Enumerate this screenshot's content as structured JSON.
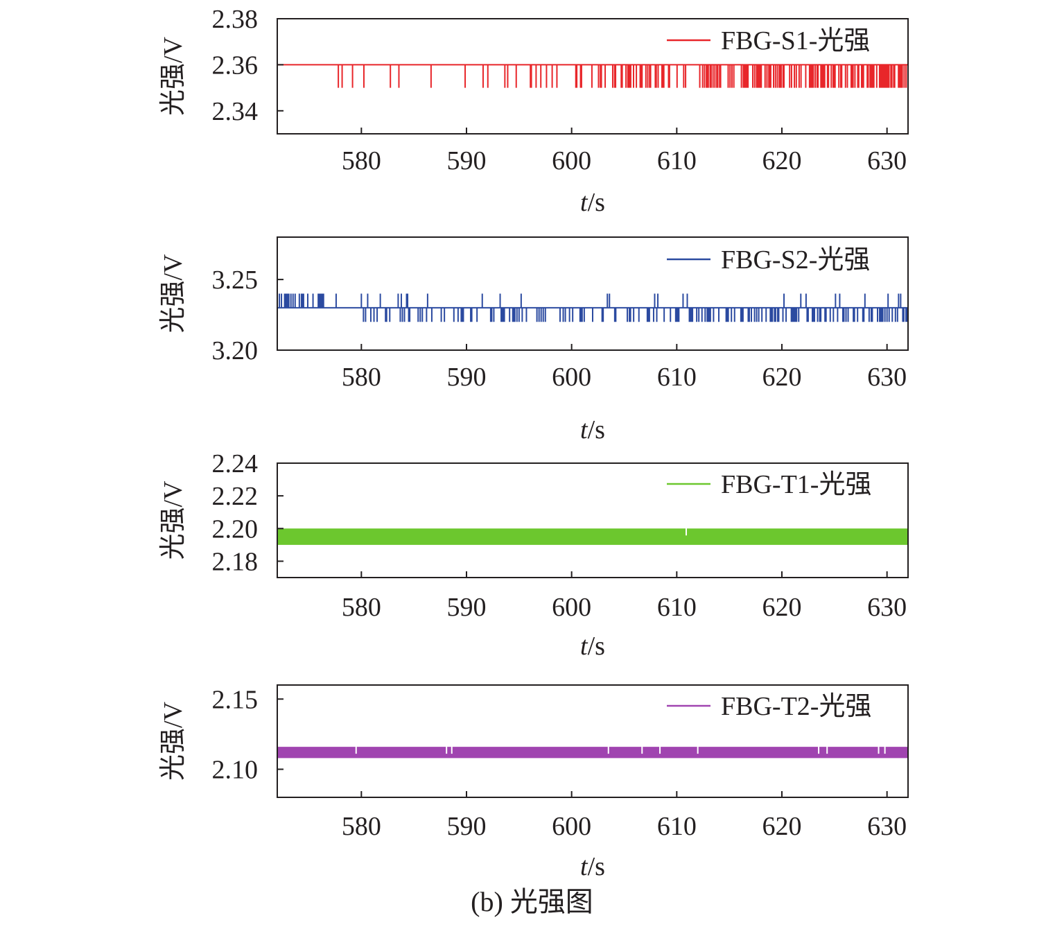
{
  "caption": "(b) 光强图",
  "chart_data": [
    {
      "type": "line",
      "xlabel": "t/s",
      "ylabel": "光强/V",
      "xlim": [
        572,
        632
      ],
      "ylim": [
        2.33,
        2.38
      ],
      "xticks": [
        580,
        590,
        600,
        610,
        620,
        630
      ],
      "yticks": [
        2.34,
        2.36,
        2.38
      ],
      "ytick_labels": [
        "2.34",
        "2.36",
        "2.38"
      ],
      "legend_position": "top-right",
      "series": [
        {
          "name": "FBG-S1-光强",
          "color": "#e8262a",
          "baseline": 2.36,
          "dip": 2.35,
          "pattern": "baseline at 2.36 with frequent drops to 2.35, density increasing with time"
        }
      ]
    },
    {
      "type": "line",
      "xlabel": "t/s",
      "ylabel": "光强/V",
      "xlim": [
        572,
        632
      ],
      "ylim": [
        3.2,
        3.28
      ],
      "xticks": [
        580,
        590,
        600,
        610,
        620,
        630
      ],
      "yticks": [
        3.2,
        3.25
      ],
      "ytick_labels": [
        "3.20",
        "3.25"
      ],
      "legend_position": "top-right",
      "series": [
        {
          "name": "FBG-S2-光强",
          "color": "#2b4aa0",
          "baseline": 3.23,
          "high": 3.24,
          "low": 3.22,
          "pattern": "baseline at 3.23 switching between 3.24 (early) and 3.22 (later)"
        }
      ]
    },
    {
      "type": "line",
      "xlabel": "t/s",
      "ylabel": "光强/V",
      "xlim": [
        572,
        632
      ],
      "ylim": [
        2.17,
        2.24
      ],
      "xticks": [
        580,
        590,
        600,
        610,
        620,
        630
      ],
      "yticks": [
        2.18,
        2.2,
        2.22,
        2.24
      ],
      "ytick_labels": [
        "2.18",
        "2.20",
        "2.22",
        "2.24"
      ],
      "legend_position": "top-right",
      "series": [
        {
          "name": "FBG-T1-光强",
          "color": "#6cc72e",
          "low": 2.19,
          "high": 2.2,
          "pattern": "dense oscillation between 2.19 and 2.20"
        }
      ]
    },
    {
      "type": "line",
      "xlabel": "t/s",
      "ylabel": "光强/V",
      "xlim": [
        572,
        632
      ],
      "ylim": [
        2.08,
        2.16
      ],
      "xticks": [
        580,
        590,
        600,
        610,
        620,
        630
      ],
      "yticks": [
        2.1,
        2.15
      ],
      "ytick_labels": [
        "2.10",
        "2.15"
      ],
      "legend_position": "top-right",
      "series": [
        {
          "name": "FBG-T2-光强",
          "color": "#a044b0",
          "low": 2.108,
          "high": 2.116,
          "pattern": "dense oscillation between 2.108 and 2.116"
        }
      ]
    }
  ]
}
